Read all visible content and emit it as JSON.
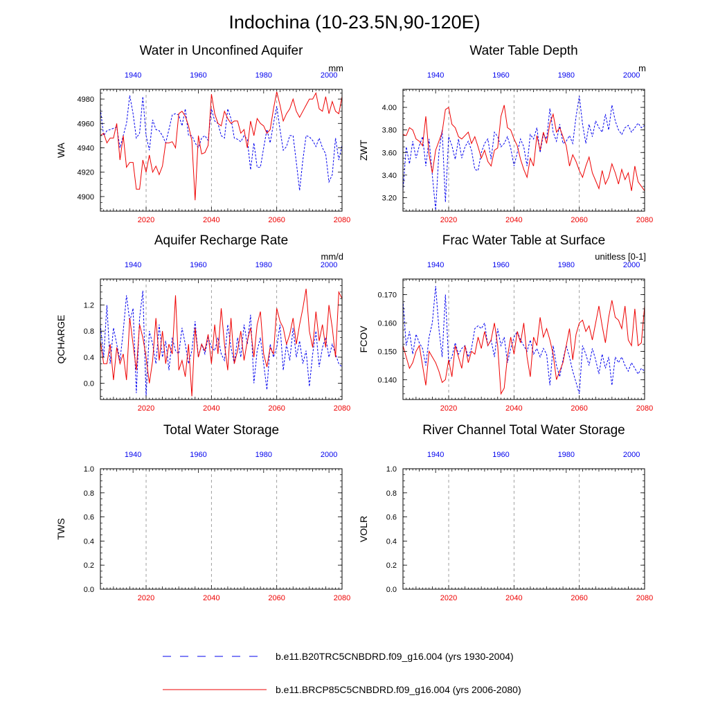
{
  "figure": {
    "title": "Indochina (10-23.5N,90-120E)"
  },
  "colors": {
    "historical": "#0000ee",
    "future": "#ee0000",
    "axis": "#000000",
    "grid": "#888888"
  },
  "legend": {
    "placement": "bottom",
    "items": [
      {
        "label": "b.e11.B20TRC5CNBDRD.f09_g16.004 (yrs 1930-2004)",
        "style": "dashed",
        "color": "#0000ee"
      },
      {
        "label": "b.e11.BRCP85C5CNBDRD.f09_g16.004 (yrs 2006-2080)",
        "style": "solid",
        "color": "#ee0000"
      }
    ]
  },
  "chart_data": [
    {
      "type": "line",
      "title": "Water in Unconfined Aquifer",
      "units": "mm",
      "ylabel": "WA",
      "xlim_bottom": [
        2006,
        2080
      ],
      "xlim_top": [
        1930,
        2004
      ],
      "bottom_ticks": [
        2020,
        2040,
        2060,
        2080
      ],
      "top_ticks": [
        1940,
        1960,
        1980,
        2000
      ],
      "ylim": [
        4888,
        4988
      ],
      "yticks": [
        4900,
        4920,
        4940,
        4960,
        4980
      ],
      "ytick_labels": [
        "4900",
        "4920",
        "4940",
        "4960",
        "4980"
      ],
      "grid": "dashed vertical at bottom-axis ticks",
      "series": [
        {
          "key": "historical",
          "start_year": 1930,
          "values": [
            4972,
            4950,
            4954,
            4955,
            4956,
            4957,
            4940,
            4950,
            4960,
            4983,
            4968,
            4948,
            4952,
            4982,
            4950,
            4938,
            4963,
            4955,
            4954,
            4950,
            4944,
            4955,
            4967,
            4968,
            4967,
            4958,
            4972,
            4950,
            4950,
            4944,
            4940,
            4948,
            4950,
            4946,
            4972,
            4962,
            4960,
            4950,
            4948,
            4972,
            4964,
            4948,
            4947,
            4945,
            4950,
            4947,
            4922,
            4944,
            4924,
            4924,
            4940,
            4955,
            4944,
            4960,
            4974,
            4955,
            4938,
            4941,
            4950,
            4950,
            4928,
            4905,
            4930,
            4950,
            4949,
            4946,
            4941,
            4948,
            4940,
            4935,
            4912,
            4918,
            4948,
            4930,
            4942
          ]
        },
        {
          "key": "future",
          "start_year": 2006,
          "values": [
            4950,
            4952,
            4944,
            4948,
            4948,
            4960,
            4930,
            4950,
            4924,
            4928,
            4928,
            4906,
            4906,
            4930,
            4920,
            4934,
            4920,
            4925,
            4918,
            4925,
            4944,
            4944,
            4945,
            4940,
            4968,
            4970,
            4966,
            4958,
            4946,
            4897,
            4950,
            4935,
            4936,
            4942,
            4984,
            4968,
            4960,
            4958,
            4970,
            4964,
            4960,
            4962,
            4962,
            4952,
            4955,
            4940,
            4962,
            4950,
            4964,
            4960,
            4958,
            4952,
            4955,
            4972,
            4986,
            4975,
            4962,
            4968,
            4972,
            4980,
            4970,
            4965,
            4970,
            4975,
            4980,
            4980,
            4985,
            4972,
            4970,
            4982,
            4968,
            4978,
            4970,
            4968,
            4982
          ]
        }
      ]
    },
    {
      "type": "line",
      "title": "Water Table Depth",
      "units": "m",
      "ylabel": "ZWT",
      "xlim_bottom": [
        2006,
        2080
      ],
      "xlim_top": [
        1930,
        2004
      ],
      "bottom_ticks": [
        2020,
        2040,
        2060,
        2080
      ],
      "top_ticks": [
        1940,
        1960,
        1980,
        2000
      ],
      "ylim": [
        3.08,
        4.16
      ],
      "yticks": [
        3.2,
        3.4,
        3.6,
        3.8,
        4.0
      ],
      "ytick_labels": [
        "3.20",
        "3.40",
        "3.60",
        "3.80",
        "4.00"
      ],
      "grid": "dashed vertical at bottom-axis ticks",
      "series": [
        {
          "key": "historical",
          "start_year": 1930,
          "values": [
            3.26,
            3.65,
            3.5,
            3.7,
            3.55,
            3.66,
            3.74,
            3.48,
            3.72,
            3.4,
            3.09,
            3.6,
            3.8,
            3.16,
            3.74,
            3.66,
            3.54,
            3.72,
            3.55,
            3.65,
            3.7,
            3.62,
            3.45,
            3.44,
            3.6,
            3.68,
            3.72,
            3.54,
            3.78,
            3.74,
            3.65,
            3.68,
            3.74,
            3.64,
            3.48,
            3.6,
            3.72,
            3.65,
            3.48,
            3.76,
            3.72,
            3.82,
            3.6,
            3.76,
            3.72,
            3.99,
            3.78,
            3.7,
            3.85,
            3.68,
            3.7,
            3.75,
            3.68,
            3.92,
            4.1,
            3.85,
            3.68,
            3.85,
            3.74,
            3.88,
            3.82,
            3.78,
            3.94,
            3.8,
            4.02,
            3.88,
            3.8,
            3.76,
            3.82,
            3.84,
            3.78,
            3.82,
            3.86,
            3.82,
            3.84
          ]
        },
        {
          "key": "future",
          "start_year": 2006,
          "values": [
            3.76,
            3.75,
            3.82,
            3.8,
            3.72,
            3.7,
            3.66,
            3.92,
            3.58,
            3.42,
            3.62,
            3.7,
            3.78,
            3.98,
            4.0,
            3.85,
            3.82,
            3.74,
            3.72,
            3.75,
            3.78,
            3.68,
            3.74,
            3.65,
            3.55,
            3.62,
            3.52,
            3.48,
            3.62,
            3.64,
            3.92,
            4.02,
            3.82,
            3.8,
            3.72,
            3.66,
            3.54,
            3.45,
            3.38,
            3.55,
            3.48,
            3.75,
            3.62,
            3.78,
            3.68,
            3.86,
            3.94,
            3.78,
            3.82,
            3.74,
            3.66,
            3.48,
            3.58,
            3.52,
            3.44,
            3.38,
            3.48,
            3.56,
            3.42,
            3.35,
            3.28,
            3.44,
            3.32,
            3.38,
            3.5,
            3.42,
            3.32,
            3.45,
            3.36,
            3.42,
            3.26,
            3.48,
            3.34,
            3.3,
            3.26
          ]
        }
      ]
    },
    {
      "type": "line",
      "title": "Aquifer Recharge Rate",
      "units": "mm/d",
      "ylabel": "QCHARGE",
      "xlim_bottom": [
        2006,
        2080
      ],
      "xlim_top": [
        1930,
        2004
      ],
      "bottom_ticks": [
        2020,
        2040,
        2060,
        2080
      ],
      "top_ticks": [
        1940,
        1960,
        1980,
        2000
      ],
      "ylim": [
        -0.25,
        1.6
      ],
      "yticks": [
        0.0,
        0.4,
        0.8,
        1.2
      ],
      "ytick_labels": [
        "0.0",
        "0.4",
        "0.8",
        "1.2"
      ],
      "grid": "dashed vertical at bottom-axis ticks",
      "series": [
        {
          "key": "historical",
          "start_year": 1930,
          "values": [
            0.9,
            0.4,
            1.2,
            0.3,
            0.85,
            0.6,
            0.35,
            0.8,
            1.35,
            0.95,
            1.15,
            -0.15,
            1.0,
            1.42,
            -0.2,
            0.8,
            0.6,
            0.3,
            0.9,
            0.4,
            0.65,
            0.2,
            0.7,
            0.5,
            0.45,
            0.85,
            0.6,
            0.3,
            0.5,
            0.95,
            0.4,
            0.6,
            0.45,
            0.7,
            0.55,
            0.5,
            0.7,
            0.45,
            0.35,
            0.9,
            0.55,
            0.3,
            0.7,
            0.4,
            0.9,
            0.6,
            1.05,
            0.0,
            0.5,
            0.7,
            0.3,
            -0.1,
            0.6,
            0.4,
            0.55,
            0.9,
            0.2,
            0.6,
            0.35,
            0.85,
            0.4,
            0.65,
            0.3,
            0.5,
            -0.05,
            0.45,
            0.8,
            0.25,
            0.55,
            0.7,
            0.4,
            0.6,
            0.45,
            0.3,
            0.25
          ]
        },
        {
          "key": "future",
          "start_year": 2006,
          "values": [
            0.65,
            0.3,
            0.3,
            0.6,
            0.05,
            0.55,
            0.3,
            0.45,
            0.05,
            1.0,
            0.6,
            0.2,
            0.9,
            0.7,
            0.4,
            0.0,
            0.35,
            1.0,
            0.35,
            0.8,
            0.3,
            0.6,
            0.45,
            1.35,
            0.2,
            0.35,
            0.1,
            0.6,
            -0.2,
            0.85,
            0.4,
            0.6,
            0.5,
            0.75,
            0.3,
            0.9,
            0.45,
            1.15,
            0.6,
            0.2,
            1.0,
            0.3,
            0.5,
            0.8,
            0.35,
            0.65,
            0.85,
            0.4,
            0.9,
            1.1,
            0.45,
            0.25,
            0.55,
            0.45,
            1.15,
            0.95,
            0.85,
            0.6,
            0.75,
            1.0,
            0.6,
            0.9,
            1.15,
            1.45,
            0.8,
            0.55,
            1.1,
            0.65,
            0.9,
            0.55,
            1.2,
            0.85,
            0.4,
            1.4,
            1.3
          ]
        }
      ]
    },
    {
      "type": "line",
      "title": "Frac Water Table at Surface",
      "units": "unitless [0-1]",
      "ylabel": "FCOV",
      "xlim_bottom": [
        2006,
        2080
      ],
      "xlim_top": [
        1930,
        2004
      ],
      "bottom_ticks": [
        2020,
        2040,
        2060,
        2080
      ],
      "top_ticks": [
        1940,
        1960,
        1980,
        2000
      ],
      "ylim": [
        0.133,
        0.1755
      ],
      "yticks": [
        0.14,
        0.15,
        0.16,
        0.17
      ],
      "ytick_labels": [
        "0.140",
        "0.150",
        "0.160",
        "0.170"
      ],
      "grid": "dashed vertical at bottom-axis ticks",
      "series": [
        {
          "key": "historical",
          "start_year": 1930,
          "values": [
            0.168,
            0.152,
            0.157,
            0.149,
            0.156,
            0.153,
            0.151,
            0.145,
            0.155,
            0.16,
            0.173,
            0.158,
            0.148,
            0.17,
            0.146,
            0.148,
            0.153,
            0.149,
            0.151,
            0.152,
            0.148,
            0.151,
            0.158,
            0.159,
            0.158,
            0.16,
            0.152,
            0.154,
            0.148,
            0.158,
            0.152,
            0.155,
            0.146,
            0.151,
            0.155,
            0.157,
            0.154,
            0.152,
            0.15,
            0.154,
            0.149,
            0.151,
            0.148,
            0.151,
            0.149,
            0.138,
            0.152,
            0.145,
            0.141,
            0.147,
            0.152,
            0.148,
            0.143,
            0.139,
            0.135,
            0.152,
            0.149,
            0.145,
            0.151,
            0.147,
            0.142,
            0.149,
            0.144,
            0.148,
            0.138,
            0.148,
            0.146,
            0.148,
            0.145,
            0.143,
            0.146,
            0.144,
            0.142,
            0.144,
            0.143
          ]
        },
        {
          "key": "future",
          "start_year": 2006,
          "values": [
            0.152,
            0.148,
            0.144,
            0.146,
            0.15,
            0.152,
            0.145,
            0.138,
            0.15,
            0.148,
            0.146,
            0.143,
            0.139,
            0.14,
            0.147,
            0.141,
            0.152,
            0.148,
            0.144,
            0.152,
            0.146,
            0.15,
            0.149,
            0.155,
            0.151,
            0.157,
            0.152,
            0.154,
            0.16,
            0.152,
            0.135,
            0.137,
            0.148,
            0.155,
            0.149,
            0.157,
            0.153,
            0.16,
            0.148,
            0.141,
            0.155,
            0.152,
            0.162,
            0.155,
            0.158,
            0.154,
            0.149,
            0.14,
            0.143,
            0.146,
            0.152,
            0.158,
            0.147,
            0.156,
            0.16,
            0.161,
            0.157,
            0.159,
            0.154,
            0.16,
            0.166,
            0.159,
            0.153,
            0.162,
            0.168,
            0.162,
            0.161,
            0.158,
            0.166,
            0.154,
            0.152,
            0.165,
            0.152,
            0.153,
            0.166
          ]
        }
      ]
    },
    {
      "type": "line",
      "title": "Total Water Storage",
      "units": "",
      "ylabel": "TWS",
      "xlim_bottom": [
        2006,
        2080
      ],
      "xlim_top": [
        1930,
        2004
      ],
      "bottom_ticks": [
        2020,
        2040,
        2060,
        2080
      ],
      "top_ticks": [
        1940,
        1960,
        1980,
        2000
      ],
      "ylim": [
        0,
        1
      ],
      "yticks": [
        0.0,
        0.2,
        0.4,
        0.6,
        0.8,
        1.0
      ],
      "ytick_labels": [
        "0.0",
        "0.2",
        "0.4",
        "0.6",
        "0.8",
        "1.0"
      ],
      "grid": "dashed vertical at bottom-axis ticks",
      "series": []
    },
    {
      "type": "line",
      "title": "River Channel Total Water Storage",
      "units": "",
      "ylabel": "VOLR",
      "xlim_bottom": [
        2006,
        2080
      ],
      "xlim_top": [
        1930,
        2004
      ],
      "bottom_ticks": [
        2020,
        2040,
        2060,
        2080
      ],
      "top_ticks": [
        1940,
        1960,
        1980,
        2000
      ],
      "ylim": [
        0,
        1
      ],
      "yticks": [
        0.0,
        0.2,
        0.4,
        0.6,
        0.8,
        1.0
      ],
      "ytick_labels": [
        "0.0",
        "0.2",
        "0.4",
        "0.6",
        "0.8",
        "1.0"
      ],
      "grid": "dashed vertical at bottom-axis ticks",
      "series": []
    }
  ]
}
